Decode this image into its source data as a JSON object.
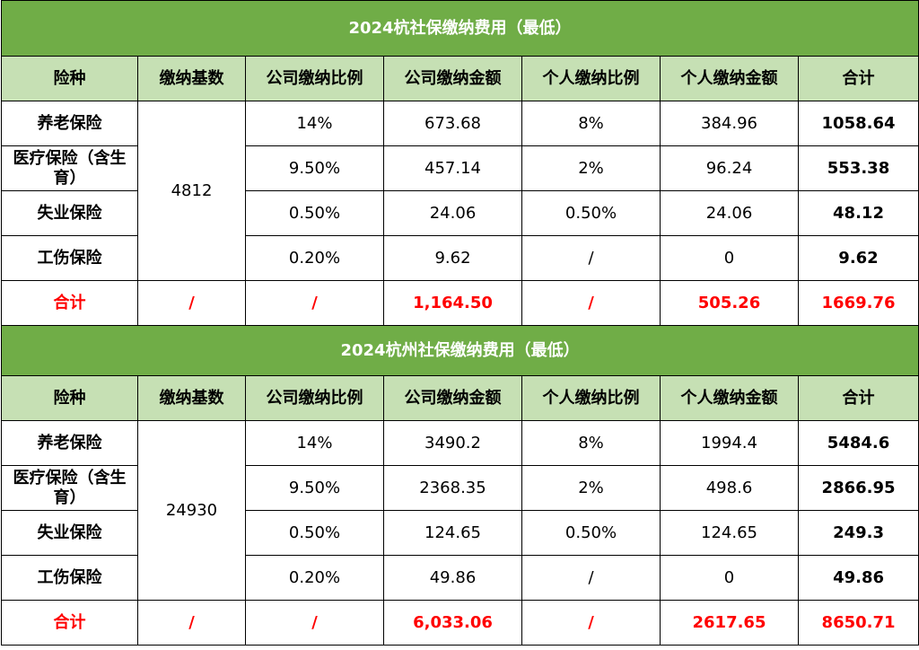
{
  "columns": [
    "险种",
    "缴纳基数",
    "公司缴纳比例",
    "公司缴纳金额",
    "个人缴纳比例",
    "个人缴纳金额",
    "合计"
  ],
  "tables": [
    {
      "title": "2024杭社保缴纳费用（最低）",
      "base": "4812",
      "rows": [
        {
          "type": "养老保险",
          "company_rate": "14%",
          "company_amount": "673.68",
          "personal_rate": "8%",
          "personal_amount": "384.96",
          "total": "1058.64"
        },
        {
          "type": "医疗保险（含生育）",
          "company_rate": "9.50%",
          "company_amount": "457.14",
          "personal_rate": "2%",
          "personal_amount": "96.24",
          "total": "553.38"
        },
        {
          "type": "失业保险",
          "company_rate": "0.50%",
          "company_amount": "24.06",
          "personal_rate": "0.50%",
          "personal_amount": "24.06",
          "total": "48.12"
        },
        {
          "type": "工伤保险",
          "company_rate": "0.20%",
          "company_amount": "9.62",
          "personal_rate": "/",
          "personal_amount": "0",
          "total": "9.62"
        }
      ],
      "total_row": {
        "label": "合计",
        "base": "/",
        "company_rate": "/",
        "company_amount": "1,164.50",
        "personal_rate": "/",
        "personal_amount": "505.26",
        "total": "1669.76"
      }
    },
    {
      "title": "2024杭州社保缴纳费用（最低）",
      "base": "24930",
      "rows": [
        {
          "type": "养老保险",
          "company_rate": "14%",
          "company_amount": "3490.2",
          "personal_rate": "8%",
          "personal_amount": "1994.4",
          "total": "5484.6"
        },
        {
          "type": "医疗保险（含生育）",
          "company_rate": "9.50%",
          "company_amount": "2368.35",
          "personal_rate": "2%",
          "personal_amount": "498.6",
          "total": "2866.95"
        },
        {
          "type": "失业保险",
          "company_rate": "0.50%",
          "company_amount": "124.65",
          "personal_rate": "0.50%",
          "personal_amount": "124.65",
          "total": "249.3"
        },
        {
          "type": "工伤保险",
          "company_rate": "0.20%",
          "company_amount": "49.86",
          "personal_rate": "/",
          "personal_amount": "0",
          "total": "49.86"
        }
      ],
      "total_row": {
        "label": "合计",
        "base": "/",
        "company_rate": "/",
        "company_amount": "6,033.06",
        "personal_rate": "/",
        "personal_amount": "2617.65",
        "total": "8650.71"
      }
    }
  ]
}
